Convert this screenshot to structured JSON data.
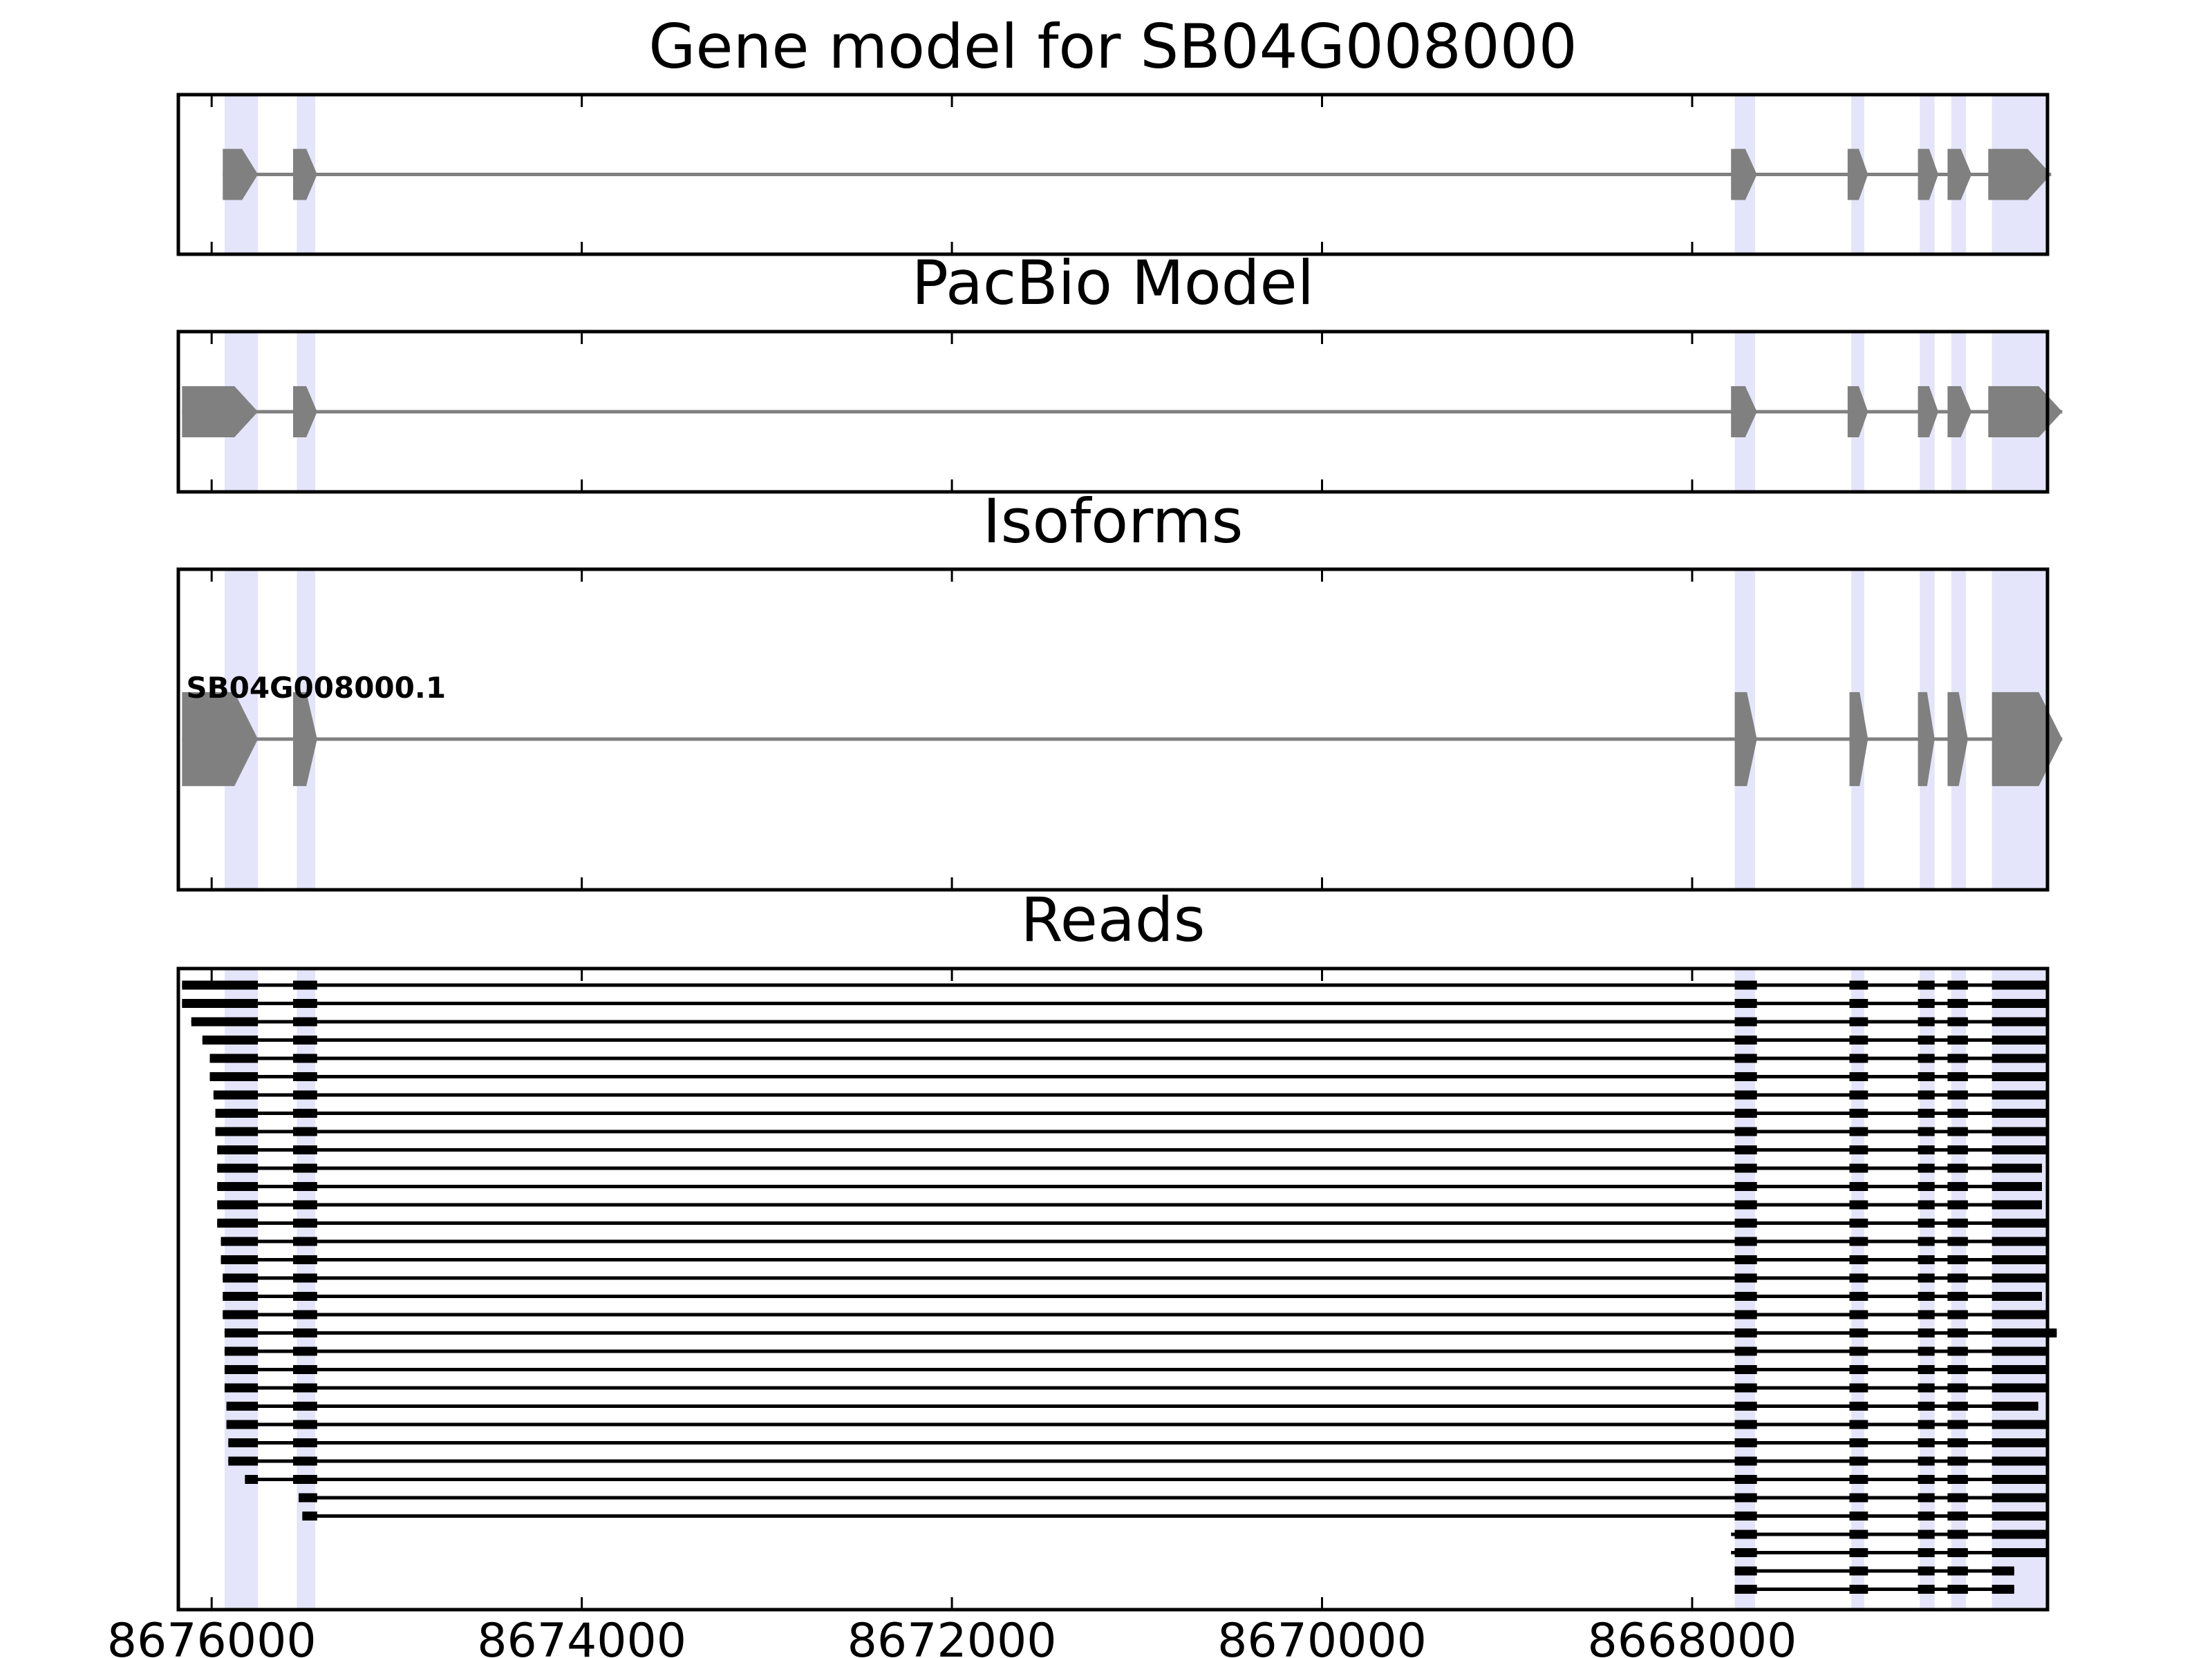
{
  "chart_data": {
    "type": "gene-structure",
    "x_axis": {
      "ticks": [
        8676000,
        8674000,
        8672000,
        8670000,
        8668000
      ],
      "tick_labels": [
        "8676000",
        "8674000",
        "8672000",
        "8670000",
        "8668000"
      ],
      "xlim": [
        8676180,
        8666080
      ],
      "reversed": true
    },
    "colors": {
      "exon": "#808080",
      "intron": "#808080",
      "highlight": "#e4e4fa",
      "read": "#000000",
      "frame": "#000000"
    },
    "highlight_regions": [
      [
        8675930,
        8675750
      ],
      [
        8675540,
        8675440
      ],
      [
        8667770,
        8667660
      ],
      [
        8667140,
        8667070
      ],
      [
        8666770,
        8666690
      ],
      [
        8666600,
        8666520
      ],
      [
        8666380,
        8666080
      ]
    ],
    "panels": [
      {
        "id": "gene-model",
        "title": "Gene model for SB04G008000",
        "label": "",
        "exons": [
          [
            8675940,
            8675750
          ],
          [
            8675560,
            8675430
          ],
          [
            8667790,
            8667650
          ],
          [
            8667160,
            8667050
          ],
          [
            8666780,
            8666670
          ],
          [
            8666620,
            8666490
          ],
          [
            8666400,
            8666060
          ]
        ]
      },
      {
        "id": "pacbio-model",
        "title": "PacBio Model",
        "label": "",
        "exons": [
          [
            8676160,
            8675750
          ],
          [
            8675560,
            8675430
          ],
          [
            8667790,
            8667650
          ],
          [
            8667160,
            8667050
          ],
          [
            8666780,
            8666670
          ],
          [
            8666620,
            8666490
          ],
          [
            8666400,
            8666000
          ]
        ]
      },
      {
        "id": "isoforms",
        "title": "Isoforms",
        "label": "SB04G008000.1",
        "exons": [
          [
            8676160,
            8675750
          ],
          [
            8675560,
            8675430
          ],
          [
            8667770,
            8667650
          ],
          [
            8667150,
            8667050
          ],
          [
            8666780,
            8666690
          ],
          [
            8666620,
            8666510
          ],
          [
            8666380,
            8666000
          ]
        ]
      },
      {
        "id": "reads",
        "title": "Reads",
        "reads": [
          {
            "start": 8676160,
            "end": 8666080
          },
          {
            "start": 8676160,
            "end": 8666080
          },
          {
            "start": 8676110,
            "end": 8666080
          },
          {
            "start": 8676050,
            "end": 8666080
          },
          {
            "start": 8676010,
            "end": 8666080
          },
          {
            "start": 8676010,
            "end": 8666080
          },
          {
            "start": 8675990,
            "end": 8666080
          },
          {
            "start": 8675980,
            "end": 8666080
          },
          {
            "start": 8675980,
            "end": 8666080
          },
          {
            "start": 8675970,
            "end": 8666080
          },
          {
            "start": 8675970,
            "end": 8666110
          },
          {
            "start": 8675970,
            "end": 8666110
          },
          {
            "start": 8675970,
            "end": 8666110
          },
          {
            "start": 8675970,
            "end": 8666080
          },
          {
            "start": 8675950,
            "end": 8666080
          },
          {
            "start": 8675950,
            "end": 8666080
          },
          {
            "start": 8675940,
            "end": 8666080
          },
          {
            "start": 8675940,
            "end": 8666110
          },
          {
            "start": 8675940,
            "end": 8666080
          },
          {
            "start": 8675930,
            "end": 8666030
          },
          {
            "start": 8675930,
            "end": 8666080
          },
          {
            "start": 8675930,
            "end": 8666080
          },
          {
            "start": 8675930,
            "end": 8666080
          },
          {
            "start": 8675920,
            "end": 8666130
          },
          {
            "start": 8675920,
            "end": 8666080
          },
          {
            "start": 8675910,
            "end": 8666080
          },
          {
            "start": 8675910,
            "end": 8666080
          },
          {
            "start": 8675820,
            "end": 8666080
          },
          {
            "start": 8675530,
            "end": 8666080
          },
          {
            "start": 8675510,
            "end": 8666080
          },
          {
            "start": 8667790,
            "end": 8666080
          },
          {
            "start": 8667790,
            "end": 8666080
          },
          {
            "start": 8667770,
            "end": 8666260
          },
          {
            "start": 8667770,
            "end": 8666260
          }
        ]
      }
    ]
  }
}
